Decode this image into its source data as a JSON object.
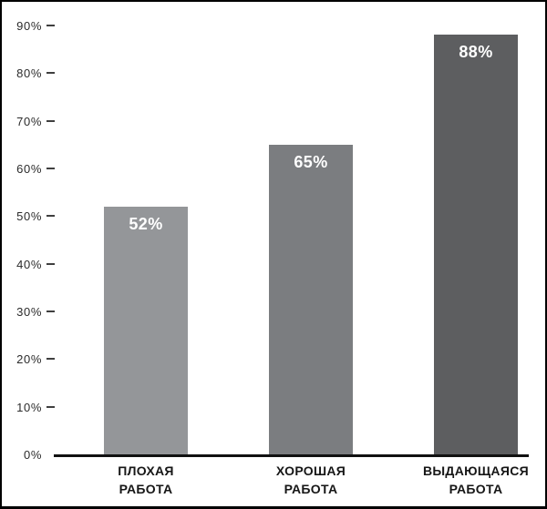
{
  "chart_data": {
    "type": "bar",
    "title": "",
    "xlabel": "",
    "ylabel": "",
    "categories": [
      "ПЛОХАЯ РАБОТА",
      "ХОРОШАЯ РАБОТА",
      "ВЫДАЮЩАЯСЯ РАБОТА"
    ],
    "values": [
      52,
      65,
      88
    ],
    "value_labels": [
      "52%",
      "65%",
      "88%"
    ],
    "bar_colors": [
      "#949699",
      "#7b7d80",
      "#5d5e60"
    ],
    "ylim": [
      0,
      90
    ],
    "ytick_step": 10,
    "ytick_labels": [
      "0%",
      "10%",
      "20%",
      "30%",
      "40%",
      "50%",
      "60%",
      "70%",
      "80%",
      "90%"
    ],
    "grid": false,
    "legend": false,
    "value_label_color": "#ffffff"
  },
  "colors": {
    "background": "#ffffff",
    "frame_border": "#000000",
    "axis_line": "#111111",
    "tick_dash": "#3f3f3f",
    "tick_text": "#2b2b2b",
    "category_text": "#161616"
  }
}
